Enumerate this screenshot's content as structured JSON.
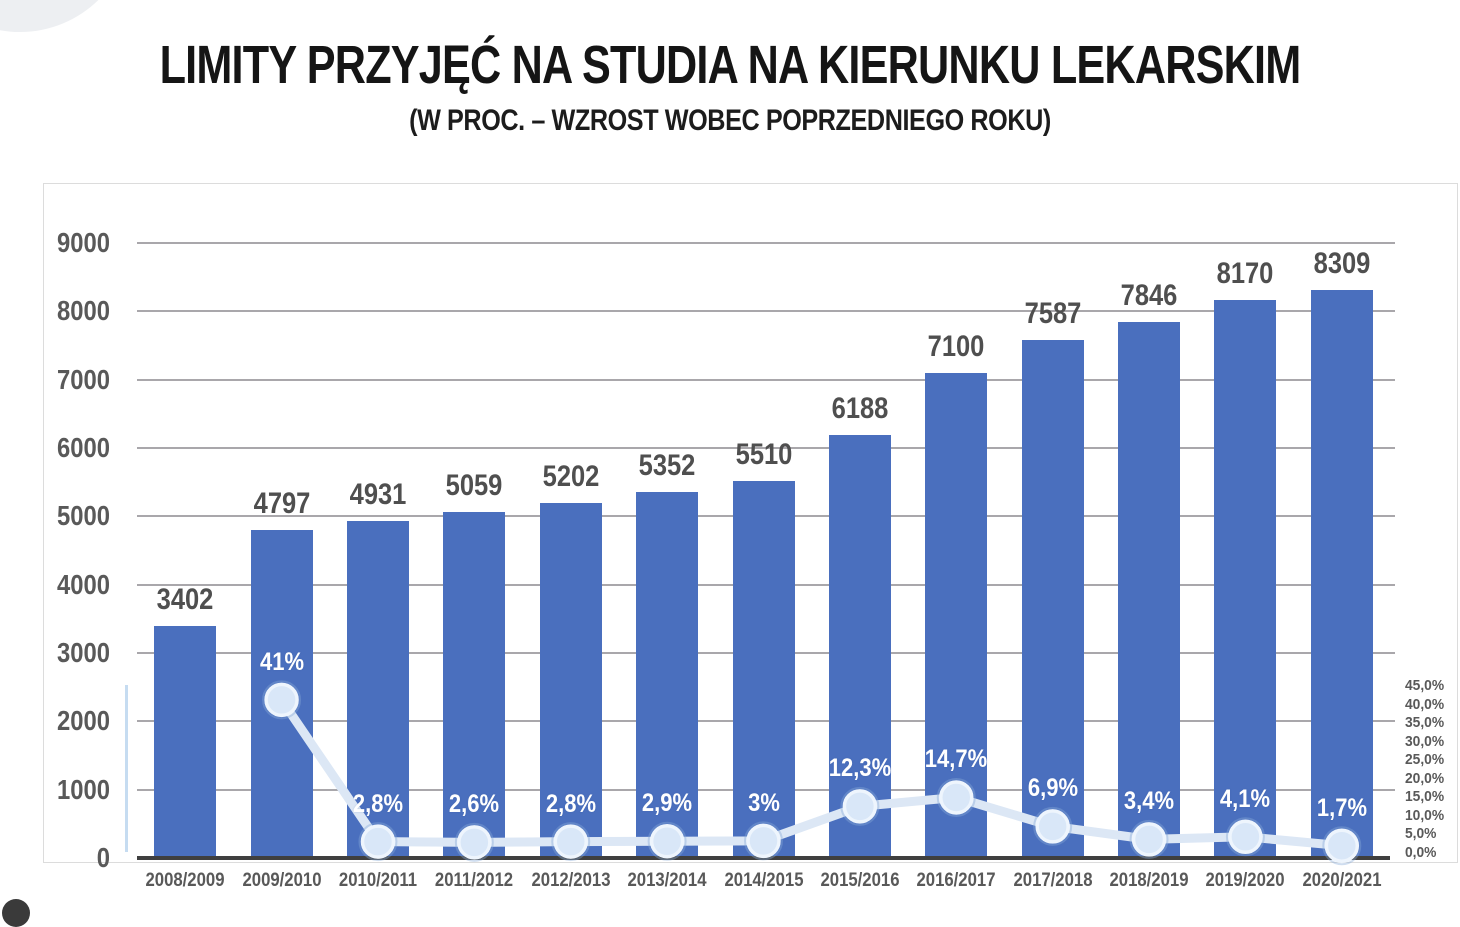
{
  "title": "LIMITY PRZYJĘĆ NA STUDIA NA KIERUNKU LEKARSKIM",
  "subtitle": "(W PROC. – WZROST WOBEC POPRZEDNIEGO ROKU)",
  "chart_data": {
    "type": "bar",
    "combo": "bars with overlaid line on secondary percent axis",
    "title": "LIMITY PRZYJĘĆ NA STUDIA NA KIERUNKU LEKARSKIM",
    "subtitle": "(W PROC. – WZROST WOBEC POPRZEDNIEGO ROKU)",
    "categories": [
      "2008/2009",
      "2009/2010",
      "2010/2011",
      "2011/2012",
      "2012/2013",
      "2013/2014",
      "2014/2015",
      "2015/2016",
      "2016/2017",
      "2017/2018",
      "2018/2019",
      "2019/2020",
      "2020/2021"
    ],
    "series": [
      {
        "name": "Limity przyjęć",
        "type": "bar",
        "values": [
          3402,
          4797,
          4931,
          5059,
          5202,
          5352,
          5510,
          6188,
          7100,
          7587,
          7846,
          8170,
          8309
        ],
        "value_labels": [
          "3402",
          "4797",
          "4931",
          "5059",
          "5202",
          "5352",
          "5510",
          "6188",
          "7100",
          "7587",
          "7846",
          "8170",
          "8309"
        ]
      },
      {
        "name": "Wzrost wobec poprzedniego roku (%)",
        "type": "line",
        "values": [
          null,
          41,
          2.8,
          2.6,
          2.8,
          2.9,
          3,
          12.3,
          14.7,
          6.9,
          3.4,
          4.1,
          1.7
        ],
        "point_labels": [
          "",
          "41%",
          "2,8%",
          "2,6%",
          "2,8%",
          "2,9%",
          "3%",
          "12,3%",
          "14,7%",
          "6,9%",
          "3,4%",
          "4,1%",
          "1,7%"
        ]
      }
    ],
    "left_axis": {
      "min": 0,
      "max": 9000,
      "step": 1000,
      "tick_labels": [
        "0",
        "1000",
        "2000",
        "3000",
        "4000",
        "5000",
        "6000",
        "7000",
        "8000",
        "9000"
      ]
    },
    "right_axis": {
      "min": 0,
      "max": 45,
      "step": 5,
      "tick_labels": [
        "0,0%",
        "5,0%",
        "10,0%",
        "15,0%",
        "20,0%",
        "25,0%",
        "30,0%",
        "35,0%",
        "40,0%",
        "45,0%"
      ]
    },
    "grid": true,
    "legend": "none",
    "colors": {
      "bar": "#4a6fbe",
      "line": "#dce7f5",
      "marker_fill": "#d9e7f8",
      "marker_ring": "#eef5fd",
      "grid": "#a9a7ab",
      "axis_text": "#595959",
      "value_label_text": "#4f4f4f",
      "pct_label_text": "#ffffff",
      "axis_line": "#3f3f3f",
      "plot_border": "#dcdcdc"
    }
  }
}
